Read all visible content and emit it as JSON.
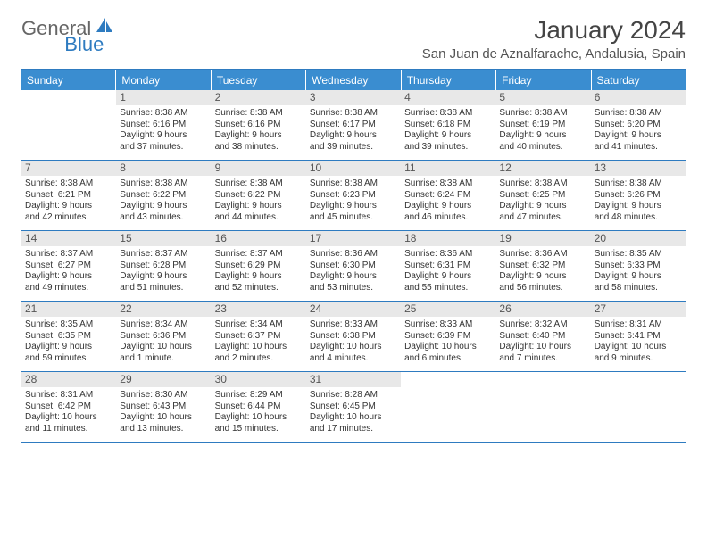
{
  "logo": {
    "part1": "General",
    "part2": "Blue"
  },
  "title": "January 2024",
  "location": "San Juan de Aznalfarache, Andalusia, Spain",
  "day_headers": [
    "Sunday",
    "Monday",
    "Tuesday",
    "Wednesday",
    "Thursday",
    "Friday",
    "Saturday"
  ],
  "colors": {
    "header_bg": "#3a8dd0",
    "border": "#2e7bc0",
    "daynum_bg": "#e8e8e8",
    "text": "#333333",
    "logo_gray": "#666666",
    "logo_blue": "#2e7bc0"
  },
  "weeks": [
    [
      {
        "n": "",
        "sr": "",
        "ss": "",
        "dl1": "",
        "dl2": ""
      },
      {
        "n": "1",
        "sr": "Sunrise: 8:38 AM",
        "ss": "Sunset: 6:16 PM",
        "dl1": "Daylight: 9 hours",
        "dl2": "and 37 minutes."
      },
      {
        "n": "2",
        "sr": "Sunrise: 8:38 AM",
        "ss": "Sunset: 6:16 PM",
        "dl1": "Daylight: 9 hours",
        "dl2": "and 38 minutes."
      },
      {
        "n": "3",
        "sr": "Sunrise: 8:38 AM",
        "ss": "Sunset: 6:17 PM",
        "dl1": "Daylight: 9 hours",
        "dl2": "and 39 minutes."
      },
      {
        "n": "4",
        "sr": "Sunrise: 8:38 AM",
        "ss": "Sunset: 6:18 PM",
        "dl1": "Daylight: 9 hours",
        "dl2": "and 39 minutes."
      },
      {
        "n": "5",
        "sr": "Sunrise: 8:38 AM",
        "ss": "Sunset: 6:19 PM",
        "dl1": "Daylight: 9 hours",
        "dl2": "and 40 minutes."
      },
      {
        "n": "6",
        "sr": "Sunrise: 8:38 AM",
        "ss": "Sunset: 6:20 PM",
        "dl1": "Daylight: 9 hours",
        "dl2": "and 41 minutes."
      }
    ],
    [
      {
        "n": "7",
        "sr": "Sunrise: 8:38 AM",
        "ss": "Sunset: 6:21 PM",
        "dl1": "Daylight: 9 hours",
        "dl2": "and 42 minutes."
      },
      {
        "n": "8",
        "sr": "Sunrise: 8:38 AM",
        "ss": "Sunset: 6:22 PM",
        "dl1": "Daylight: 9 hours",
        "dl2": "and 43 minutes."
      },
      {
        "n": "9",
        "sr": "Sunrise: 8:38 AM",
        "ss": "Sunset: 6:22 PM",
        "dl1": "Daylight: 9 hours",
        "dl2": "and 44 minutes."
      },
      {
        "n": "10",
        "sr": "Sunrise: 8:38 AM",
        "ss": "Sunset: 6:23 PM",
        "dl1": "Daylight: 9 hours",
        "dl2": "and 45 minutes."
      },
      {
        "n": "11",
        "sr": "Sunrise: 8:38 AM",
        "ss": "Sunset: 6:24 PM",
        "dl1": "Daylight: 9 hours",
        "dl2": "and 46 minutes."
      },
      {
        "n": "12",
        "sr": "Sunrise: 8:38 AM",
        "ss": "Sunset: 6:25 PM",
        "dl1": "Daylight: 9 hours",
        "dl2": "and 47 minutes."
      },
      {
        "n": "13",
        "sr": "Sunrise: 8:38 AM",
        "ss": "Sunset: 6:26 PM",
        "dl1": "Daylight: 9 hours",
        "dl2": "and 48 minutes."
      }
    ],
    [
      {
        "n": "14",
        "sr": "Sunrise: 8:37 AM",
        "ss": "Sunset: 6:27 PM",
        "dl1": "Daylight: 9 hours",
        "dl2": "and 49 minutes."
      },
      {
        "n": "15",
        "sr": "Sunrise: 8:37 AM",
        "ss": "Sunset: 6:28 PM",
        "dl1": "Daylight: 9 hours",
        "dl2": "and 51 minutes."
      },
      {
        "n": "16",
        "sr": "Sunrise: 8:37 AM",
        "ss": "Sunset: 6:29 PM",
        "dl1": "Daylight: 9 hours",
        "dl2": "and 52 minutes."
      },
      {
        "n": "17",
        "sr": "Sunrise: 8:36 AM",
        "ss": "Sunset: 6:30 PM",
        "dl1": "Daylight: 9 hours",
        "dl2": "and 53 minutes."
      },
      {
        "n": "18",
        "sr": "Sunrise: 8:36 AM",
        "ss": "Sunset: 6:31 PM",
        "dl1": "Daylight: 9 hours",
        "dl2": "and 55 minutes."
      },
      {
        "n": "19",
        "sr": "Sunrise: 8:36 AM",
        "ss": "Sunset: 6:32 PM",
        "dl1": "Daylight: 9 hours",
        "dl2": "and 56 minutes."
      },
      {
        "n": "20",
        "sr": "Sunrise: 8:35 AM",
        "ss": "Sunset: 6:33 PM",
        "dl1": "Daylight: 9 hours",
        "dl2": "and 58 minutes."
      }
    ],
    [
      {
        "n": "21",
        "sr": "Sunrise: 8:35 AM",
        "ss": "Sunset: 6:35 PM",
        "dl1": "Daylight: 9 hours",
        "dl2": "and 59 minutes."
      },
      {
        "n": "22",
        "sr": "Sunrise: 8:34 AM",
        "ss": "Sunset: 6:36 PM",
        "dl1": "Daylight: 10 hours",
        "dl2": "and 1 minute."
      },
      {
        "n": "23",
        "sr": "Sunrise: 8:34 AM",
        "ss": "Sunset: 6:37 PM",
        "dl1": "Daylight: 10 hours",
        "dl2": "and 2 minutes."
      },
      {
        "n": "24",
        "sr": "Sunrise: 8:33 AM",
        "ss": "Sunset: 6:38 PM",
        "dl1": "Daylight: 10 hours",
        "dl2": "and 4 minutes."
      },
      {
        "n": "25",
        "sr": "Sunrise: 8:33 AM",
        "ss": "Sunset: 6:39 PM",
        "dl1": "Daylight: 10 hours",
        "dl2": "and 6 minutes."
      },
      {
        "n": "26",
        "sr": "Sunrise: 8:32 AM",
        "ss": "Sunset: 6:40 PM",
        "dl1": "Daylight: 10 hours",
        "dl2": "and 7 minutes."
      },
      {
        "n": "27",
        "sr": "Sunrise: 8:31 AM",
        "ss": "Sunset: 6:41 PM",
        "dl1": "Daylight: 10 hours",
        "dl2": "and 9 minutes."
      }
    ],
    [
      {
        "n": "28",
        "sr": "Sunrise: 8:31 AM",
        "ss": "Sunset: 6:42 PM",
        "dl1": "Daylight: 10 hours",
        "dl2": "and 11 minutes."
      },
      {
        "n": "29",
        "sr": "Sunrise: 8:30 AM",
        "ss": "Sunset: 6:43 PM",
        "dl1": "Daylight: 10 hours",
        "dl2": "and 13 minutes."
      },
      {
        "n": "30",
        "sr": "Sunrise: 8:29 AM",
        "ss": "Sunset: 6:44 PM",
        "dl1": "Daylight: 10 hours",
        "dl2": "and 15 minutes."
      },
      {
        "n": "31",
        "sr": "Sunrise: 8:28 AM",
        "ss": "Sunset: 6:45 PM",
        "dl1": "Daylight: 10 hours",
        "dl2": "and 17 minutes."
      },
      {
        "n": "",
        "sr": "",
        "ss": "",
        "dl1": "",
        "dl2": ""
      },
      {
        "n": "",
        "sr": "",
        "ss": "",
        "dl1": "",
        "dl2": ""
      },
      {
        "n": "",
        "sr": "",
        "ss": "",
        "dl1": "",
        "dl2": ""
      }
    ]
  ]
}
